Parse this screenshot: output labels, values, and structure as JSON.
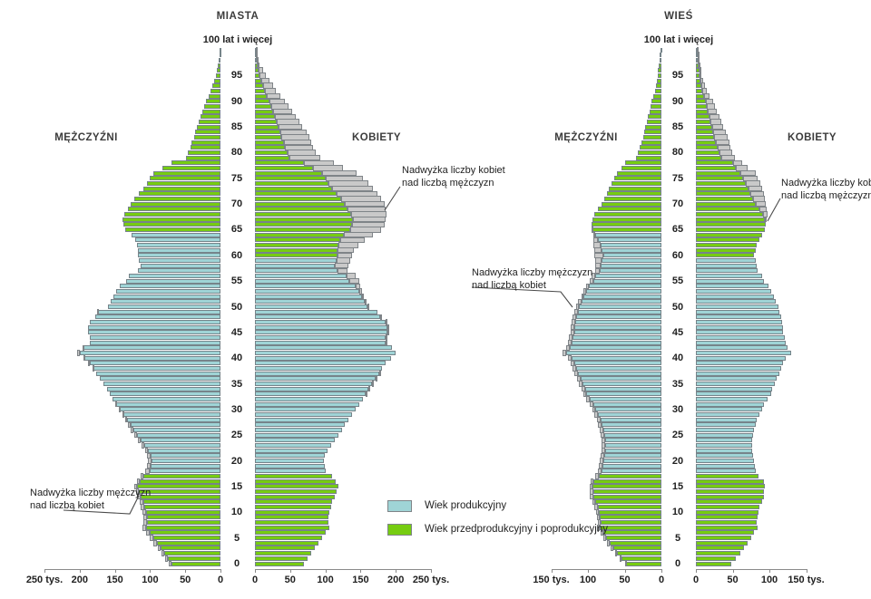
{
  "legend": {
    "items": [
      {
        "label": "Wiek produkcyjny",
        "color_key": "working"
      },
      {
        "label": "Wiek przedprodukcyjny i poprodukcyjny",
        "color_key": "nonworking"
      }
    ]
  },
  "annotations": [
    {
      "id": "urban-women-surplus",
      "lines": [
        "Nadwyżka liczby kobiet",
        "nad liczbą mężczyzn"
      ]
    },
    {
      "id": "urban-men-surplus",
      "lines": [
        "Nadwyżka liczby mężczyzn",
        "nad liczbą kobiet"
      ]
    },
    {
      "id": "rural-men-surplus",
      "lines": [
        "Nadwyżka liczby mężczyzn",
        "nad liczbą kobiet"
      ]
    },
    {
      "id": "rural-women-surplus",
      "lines": [
        "Nadwyżka liczby kobiet",
        "nad liczbą mężczyzn"
      ]
    }
  ],
  "chart_data": {
    "type": "bar",
    "subtype": "population_pyramid",
    "unit": "tys.",
    "age_min": 0,
    "age_max": 100,
    "age_tick_step": 5,
    "top_age_label": "100 lat i więcej",
    "colors": {
      "working": "#9fd4d6",
      "nonworking": "#76cc11",
      "surplus": "#c9c9c9",
      "bar_border": "#76848a",
      "axis": "#8a8a8a"
    },
    "working_age": {
      "men": [
        18,
        64
      ],
      "women": [
        18,
        59
      ]
    },
    "pyramids": [
      {
        "id": "miasta",
        "title": "MIASTA",
        "men_label": "MĘŻCZYŹNI",
        "women_label": "KOBIETY",
        "axis": {
          "max": 250,
          "tick_values": [
            250,
            200,
            150,
            100,
            50,
            0
          ],
          "max_label": "250 tys."
        },
        "men": [
          74,
          79,
          84,
          89,
          95,
          100,
          106,
          111,
          109,
          110,
          111,
          113,
          115,
          118,
          120,
          122,
          118,
          114,
          107,
          104,
          103,
          104,
          107,
          112,
          117,
          122,
          127,
          131,
          135,
          139,
          144,
          149,
          153,
          157,
          161,
          166,
          171,
          176,
          182,
          188,
          195,
          203,
          196,
          185,
          186,
          188,
          188,
          186,
          178,
          175,
          160,
          156,
          152,
          148,
          143,
          134,
          130,
          117,
          114,
          116,
          117,
          117,
          119,
          121,
          126,
          135,
          138,
          139,
          136,
          132,
          128,
          122,
          116,
          110,
          105,
          100,
          95,
          82,
          70,
          49,
          46,
          43,
          41,
          38,
          36,
          33,
          31,
          28,
          26,
          23,
          21,
          17,
          14,
          11,
          9,
          7,
          5,
          3.5,
          2.5,
          1.8,
          1.5
        ],
        "women": [
          70,
          75,
          80,
          85,
          90,
          95,
          101,
          106,
          104,
          105,
          106,
          108,
          110,
          113,
          116,
          118,
          115,
          109,
          101,
          99,
          98,
          99,
          103,
          108,
          113,
          119,
          124,
          128,
          133,
          138,
          143,
          148,
          153,
          158,
          163,
          168,
          173,
          179,
          181,
          186,
          193,
          200,
          194,
          187,
          188,
          190,
          189,
          187,
          180,
          174,
          162,
          158,
          155,
          152,
          149,
          148,
          143,
          131,
          133,
          135,
          138,
          141,
          147,
          156,
          168,
          179,
          184,
          186,
          187,
          186,
          184,
          179,
          174,
          168,
          161,
          153,
          144,
          125,
          112,
          93,
          86,
          82,
          80,
          77,
          73,
          67,
          63,
          58,
          53,
          48,
          42,
          36,
          30,
          26,
          21,
          15,
          11,
          7,
          5,
          3.5,
          2.5
        ]
      },
      {
        "id": "wies",
        "title": "WIEŚ",
        "men_label": "MĘŻCZYŹNI",
        "women_label": "KOBIETY",
        "axis": {
          "max": 150,
          "tick_values": [
            150,
            100,
            50,
            0
          ],
          "max_label": "150 tys."
        },
        "men": [
          50,
          57,
          63,
          69,
          74,
          79,
          83,
          88,
          87,
          88,
          89,
          91,
          94,
          97,
          98,
          98,
          96,
          90,
          86,
          85,
          84,
          83,
          82,
          81,
          82,
          83,
          84,
          86,
          88,
          91,
          94,
          97,
          102,
          106,
          109,
          112,
          115,
          118,
          121,
          124,
          127,
          135,
          130,
          127,
          126,
          124,
          123,
          122,
          121,
          119,
          116,
          113,
          109,
          106,
          102,
          98,
          95,
          90,
          90,
          90,
          91,
          91,
          92,
          92,
          93,
          95,
          95,
          94,
          91,
          87,
          82,
          78,
          74,
          71,
          68,
          64,
          60,
          54,
          50,
          35,
          32,
          30,
          27,
          25,
          23,
          22,
          20,
          18,
          16,
          15,
          13,
          11,
          9,
          8,
          6.5,
          5.5,
          4.5,
          3.5,
          2.5,
          2,
          1.5
        ],
        "women": [
          48,
          54,
          60,
          65,
          70,
          75,
          79,
          84,
          83,
          84,
          85,
          87,
          90,
          93,
          93,
          94,
          92,
          85,
          81,
          80,
          79,
          78,
          77,
          76,
          77,
          78,
          79,
          81,
          83,
          86,
          90,
          93,
          98,
          102,
          104,
          107,
          110,
          113,
          116,
          119,
          122,
          130,
          125,
          122,
          121,
          119,
          118,
          117,
          116,
          114,
          112,
          109,
          106,
          103,
          99,
          93,
          90,
          84,
          83,
          81,
          79,
          81,
          83,
          87,
          90,
          94,
          95,
          96,
          97,
          96,
          95,
          94,
          92,
          90,
          88,
          84,
          81,
          70,
          63,
          53,
          50,
          47,
          46,
          43,
          41,
          37,
          35,
          32,
          29,
          26,
          23,
          19,
          15,
          12,
          9.5,
          7,
          5.5,
          4,
          3,
          2.2,
          2
        ]
      }
    ]
  }
}
